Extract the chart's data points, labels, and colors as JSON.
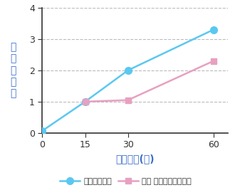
{
  "line1_x": [
    0,
    15,
    30,
    60
  ],
  "line1_y": [
    0.07,
    1.0,
    2.0,
    3.3
  ],
  "line1_color": "#5BC8F0",
  "line1_label": "ザルクリーン",
  "line1_marker": "o",
  "line2_x": [
    15,
    30,
    60
  ],
  "line2_y": [
    1.0,
    1.05,
    2.3
  ],
  "line2_color": "#E8A0C0",
  "line2_label": "日局 消毒用エタノール",
  "line2_marker": "s",
  "xlabel": "作用時間(秒)",
  "ylabel": "対\n数\n減\n少\n値",
  "xticks": [
    0,
    15,
    30,
    60
  ],
  "yticks": [
    0,
    1,
    2,
    3,
    4
  ],
  "ylim": [
    0,
    4
  ],
  "xlim": [
    0,
    65
  ],
  "xlabel_color": "#3A6CC8",
  "ylabel_color": "#3A6CC8",
  "grid_color": "#BBBBBB",
  "background_color": "#FFFFFF",
  "axis_color": "#333333",
  "linewidth": 1.8,
  "markersize": 7
}
